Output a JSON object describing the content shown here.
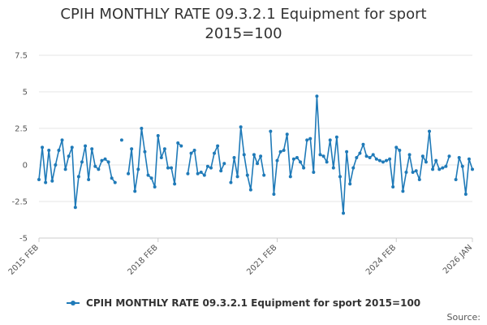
{
  "chart_data": {
    "type": "line",
    "title_line1": "CPIH MONTHLY RATE 09.3.2.1 Equipment for sport",
    "title_line2": "2015=100",
    "ylim": [
      -5,
      7.5
    ],
    "y_ticks": [
      {
        "v": 7.5,
        "label": "7.5"
      },
      {
        "v": 5,
        "label": "5"
      },
      {
        "v": 2.5,
        "label": "2.5"
      },
      {
        "v": 0,
        "label": "0"
      },
      {
        "v": -2.5,
        "label": "-2.5"
      },
      {
        "v": -5,
        "label": "-5"
      }
    ],
    "x_ticks": [
      {
        "i": 0,
        "label": "2015 FEB"
      },
      {
        "i": 36,
        "label": "2018 FEB"
      },
      {
        "i": 72,
        "label": "2021 FEB"
      },
      {
        "i": 108,
        "label": "2024 FEB"
      },
      {
        "i": 131,
        "label": "2026 JAN"
      }
    ],
    "x_range": [
      0,
      131
    ],
    "series": [
      {
        "name": "CPIH MONTHLY RATE 09.3.2.1 Equipment for sport 2015=100",
        "color": "#1f7ab8",
        "values": [
          -1.0,
          1.2,
          -1.2,
          1.0,
          -1.1,
          0.0,
          1.0,
          1.7,
          -0.3,
          0.6,
          1.2,
          -2.9,
          -0.8,
          0.2,
          1.3,
          -1.0,
          1.1,
          -0.1,
          -0.3,
          0.3,
          0.4,
          0.2,
          -0.9,
          -1.2,
          null,
          1.7,
          null,
          -0.6,
          1.1,
          -1.8,
          -0.3,
          2.5,
          0.9,
          -0.7,
          -0.9,
          -1.5,
          2.0,
          0.5,
          1.1,
          -0.2,
          -0.2,
          -1.3,
          1.5,
          1.3,
          null,
          -0.6,
          0.8,
          1.0,
          -0.6,
          -0.5,
          -0.7,
          -0.1,
          -0.2,
          0.8,
          1.3,
          -0.4,
          0.1,
          null,
          -1.2,
          0.5,
          -0.8,
          2.6,
          0.7,
          -0.7,
          -1.7,
          0.7,
          0.1,
          0.6,
          -0.7,
          null,
          2.3,
          -2.0,
          0.3,
          0.9,
          1.0,
          2.1,
          -0.8,
          0.4,
          0.5,
          0.2,
          -0.2,
          1.7,
          1.8,
          -0.5,
          4.7,
          0.7,
          0.6,
          0.2,
          1.7,
          -0.2,
          1.9,
          -0.8,
          -3.3,
          0.9,
          -1.3,
          -0.2,
          0.5,
          0.8,
          1.4,
          0.6,
          0.5,
          0.7,
          0.4,
          0.3,
          0.2,
          0.3,
          0.4,
          -1.5,
          1.2,
          1.0,
          -1.8,
          -0.5,
          0.7,
          -0.5,
          -0.4,
          -1.0,
          0.6,
          0.2,
          2.3,
          -0.3,
          0.3,
          -0.3,
          -0.2,
          -0.1,
          0.6,
          null,
          -1.0,
          0.5,
          -0.1,
          -2.0,
          0.4,
          -0.3
        ]
      }
    ]
  },
  "legend_label": "CPIH MONTHLY RATE 09.3.2.1 Equipment for sport 2015=100",
  "source_label": "Source:"
}
